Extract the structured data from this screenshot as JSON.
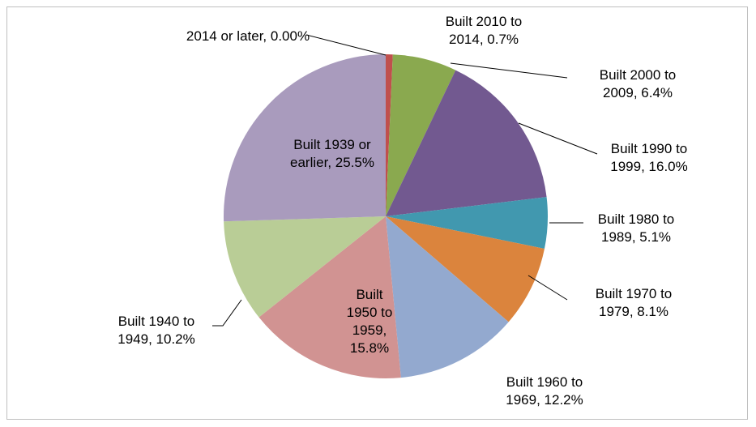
{
  "chart_data": {
    "type": "pie",
    "categories": [
      "2014 or later",
      "Built 2010 to 2014",
      "Built 2000 to 2009",
      "Built 1990 to 1999",
      "Built 1980 to 1989",
      "Built 1970 to 1979",
      "Built 1960 to 1969",
      "Built 1950 to 1959",
      "Built 1940 to 1949",
      "Built 1939 or earlier"
    ],
    "values": [
      0.0,
      0.7,
      6.4,
      16.0,
      5.1,
      8.1,
      12.2,
      15.8,
      10.2,
      25.5
    ],
    "value_labels": [
      "0.00%",
      "0.7%",
      "6.4%",
      "16.0%",
      "5.1%",
      "8.1%",
      "12.2%",
      "15.8%",
      "10.2%",
      "25.5%"
    ],
    "colors": [
      "#4f81bd",
      "#c0504d",
      "#8aa94f",
      "#725990",
      "#4198af",
      "#db843d",
      "#93a9cf",
      "#d19392",
      "#b9cd96",
      "#a99bbd"
    ]
  }
}
